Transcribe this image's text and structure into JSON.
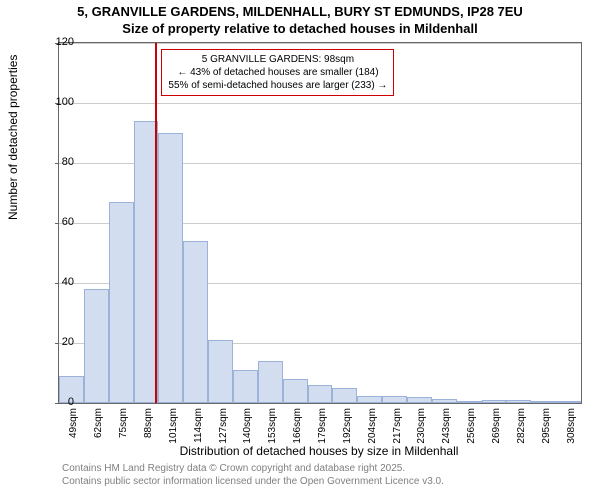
{
  "title_line1": "5, GRANVILLE GARDENS, MILDENHALL, BURY ST EDMUNDS, IP28 7EU",
  "title_line2": "Size of property relative to detached houses in Mildenhall",
  "y_axis_label": "Number of detached properties",
  "x_axis_label": "Distribution of detached houses by size in Mildenhall",
  "footer_line1": "Contains HM Land Registry data © Crown copyright and database right 2025.",
  "footer_line2": "Contains public sector information licensed under the Open Government Licence v3.0.",
  "callout_line1": "5 GRANVILLE GARDENS: 98sqm",
  "callout_line2": "← 43% of detached houses are smaller (184)",
  "callout_line3": "55% of semi-detached houses are larger (233) →",
  "chart": {
    "type": "histogram",
    "ylim": [
      0,
      120
    ],
    "ytick_step": 20,
    "y_ticks": [
      0,
      20,
      40,
      60,
      80,
      100,
      120
    ],
    "x_labels": [
      "49sqm",
      "62sqm",
      "75sqm",
      "88sqm",
      "101sqm",
      "114sqm",
      "127sqm",
      "140sqm",
      "153sqm",
      "166sqm",
      "179sqm",
      "192sqm",
      "204sqm",
      "217sqm",
      "230sqm",
      "243sqm",
      "256sqm",
      "269sqm",
      "282sqm",
      "295sqm",
      "308sqm"
    ],
    "values": [
      9,
      38,
      67,
      94,
      90,
      54,
      21,
      11,
      14,
      8,
      6,
      5,
      2.5,
      2.5,
      2,
      1.5,
      0,
      1,
      1,
      0,
      0.5
    ],
    "bar_fill": "#d2ddf0",
    "bar_border": "#9db2d8",
    "grid_color": "#cccccc",
    "axis_color": "#666666",
    "background_color": "#ffffff",
    "ref_line_index": 4,
    "ref_line_color": "#cc0000",
    "callout_border": "#cc0000",
    "title_fontsize": 13,
    "label_fontsize": 12,
    "tick_fontsize": 11,
    "xtick_fontsize": 10,
    "footer_color": "#808080"
  }
}
